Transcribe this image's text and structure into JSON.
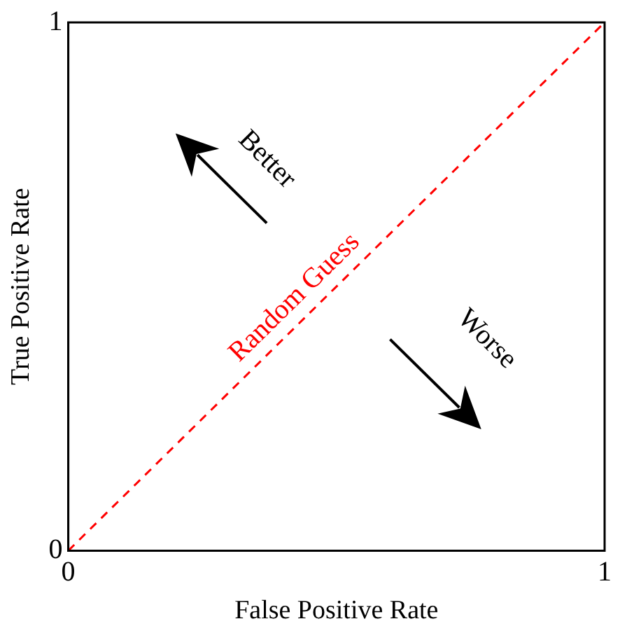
{
  "chart_data": {
    "type": "line",
    "xlabel": "False Positive Rate",
    "ylabel": "True Positive Rate",
    "x": [
      0,
      1
    ],
    "series": [
      {
        "name": "Random Guess",
        "color": "#ff0000",
        "values": [
          0,
          1
        ],
        "line_style": "dashed"
      }
    ],
    "xlim": [
      0,
      1
    ],
    "ylim": [
      0,
      1
    ],
    "xticks": [
      0,
      1
    ],
    "yticks": [
      0,
      1
    ],
    "annotations": [
      "Better",
      "Worse"
    ],
    "legend": false,
    "marker": "none"
  }
}
